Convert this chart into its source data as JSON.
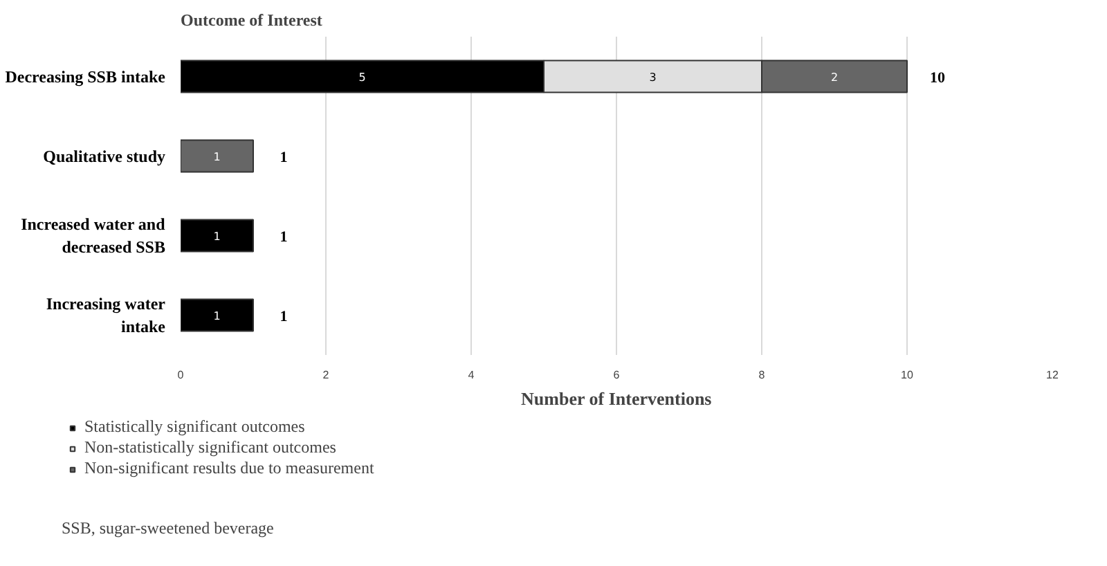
{
  "chart_data": {
    "type": "bar",
    "orientation": "horizontal",
    "stacked": true,
    "ylabel": "Outcome of Interest",
    "xlabel": "Number of Interventions",
    "categories": [
      "Decreasing SSB intake",
      "Qualitative study",
      "Increased water and decreased SSB",
      "Increasing water intake"
    ],
    "series": [
      {
        "name": "Statistically significant outcomes",
        "color": "#000000",
        "values": [
          5,
          null,
          1,
          1
        ]
      },
      {
        "name": "Non-statistically significant outcomes",
        "color": "#e0e0e0",
        "values": [
          3,
          null,
          null,
          null
        ]
      },
      {
        "name": "Non-significant results due to measurement",
        "color": "#666666",
        "values": [
          2,
          1,
          null,
          null
        ]
      }
    ],
    "totals": [
      "10",
      "1",
      "1",
      "1"
    ],
    "data_labels": true,
    "xlim": [
      0,
      12
    ],
    "xticks": [
      0,
      2,
      4,
      6,
      8,
      10,
      12
    ],
    "grid": "x",
    "legend": "bottom left",
    "annotations": [
      "SSB, sugar-sweetened beverage"
    ]
  }
}
